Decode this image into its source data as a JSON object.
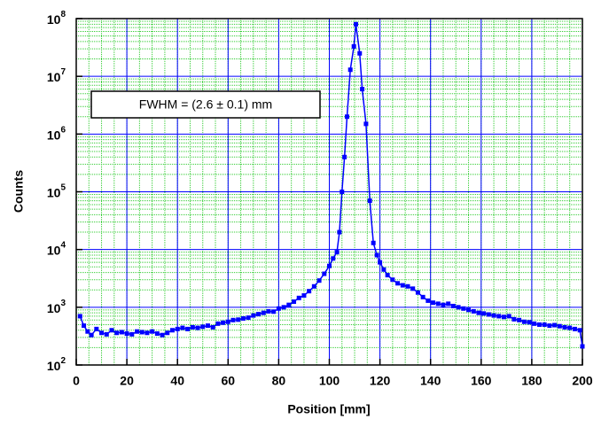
{
  "chart_data": {
    "type": "line",
    "xlabel": "Position [mm]",
    "ylabel": "Counts",
    "log_y": true,
    "grid": true,
    "annotation": "FWHM = (2.6 ± 0.1) mm",
    "xlim": [
      0,
      200
    ],
    "xticks": [
      0,
      20,
      40,
      60,
      80,
      100,
      120,
      140,
      160,
      180,
      200
    ],
    "ylim": [
      100,
      100000000
    ],
    "yticks": [
      {
        "value": 100,
        "label": "10",
        "exponent": "2"
      },
      {
        "value": 1000,
        "label": "10",
        "exponent": "3"
      },
      {
        "value": 10000,
        "label": "10",
        "exponent": "4"
      },
      {
        "value": 100000,
        "label": "10",
        "exponent": "5"
      },
      {
        "value": 1000000,
        "label": "10",
        "exponent": "6"
      },
      {
        "value": 10000000,
        "label": "10",
        "exponent": "7"
      },
      {
        "value": 100000000,
        "label": "10",
        "exponent": "8"
      }
    ],
    "series": [
      {
        "color": "#0000ff",
        "x": [
          1.5,
          3,
          4.5,
          6,
          8,
          10,
          12,
          14,
          16,
          18,
          20,
          22,
          24,
          26,
          28,
          30,
          32,
          34,
          36,
          38,
          40,
          42,
          44,
          46,
          48,
          50,
          52,
          54,
          56,
          58,
          60,
          62,
          64,
          66,
          68,
          70,
          72,
          74,
          76,
          78,
          80,
          82,
          84,
          86,
          88,
          90,
          92,
          94,
          96,
          98,
          100,
          101.5,
          103,
          104,
          105,
          106,
          107,
          108.3,
          109.7,
          110.5,
          112,
          113,
          114.5,
          116,
          117.4,
          118.8,
          120,
          121.5,
          123,
          125,
          127,
          129,
          131,
          133,
          135,
          137,
          139,
          141,
          143,
          145,
          147,
          149,
          151,
          153,
          155,
          157,
          159,
          161,
          163,
          165,
          167,
          169,
          171,
          173,
          175,
          177,
          179,
          181,
          183,
          185,
          187,
          189,
          191,
          193,
          195,
          197,
          199,
          200
        ],
        "values": [
          700,
          480,
          380,
          330,
          420,
          360,
          340,
          400,
          360,
          370,
          350,
          340,
          380,
          370,
          360,
          380,
          350,
          330,
          360,
          400,
          420,
          440,
          420,
          450,
          440,
          460,
          480,
          450,
          520,
          540,
          560,
          600,
          610,
          640,
          660,
          720,
          760,
          800,
          850,
          840,
          950,
          1000,
          1100,
          1250,
          1450,
          1600,
          1900,
          2300,
          2900,
          3800,
          5200,
          7000,
          9000,
          20000,
          100000,
          400000,
          2000000,
          13000000,
          33000000,
          80000000,
          25000000,
          6000000,
          1500000,
          70000,
          13000,
          8000,
          6000,
          4500,
          3600,
          3000,
          2600,
          2400,
          2300,
          2100,
          1800,
          1500,
          1300,
          1200,
          1150,
          1100,
          1150,
          1050,
          1000,
          950,
          900,
          850,
          800,
          780,
          750,
          720,
          700,
          680,
          700,
          620,
          600,
          560,
          550,
          520,
          500,
          500,
          480,
          490,
          470,
          450,
          440,
          420,
          400,
          210
        ]
      }
    ]
  }
}
